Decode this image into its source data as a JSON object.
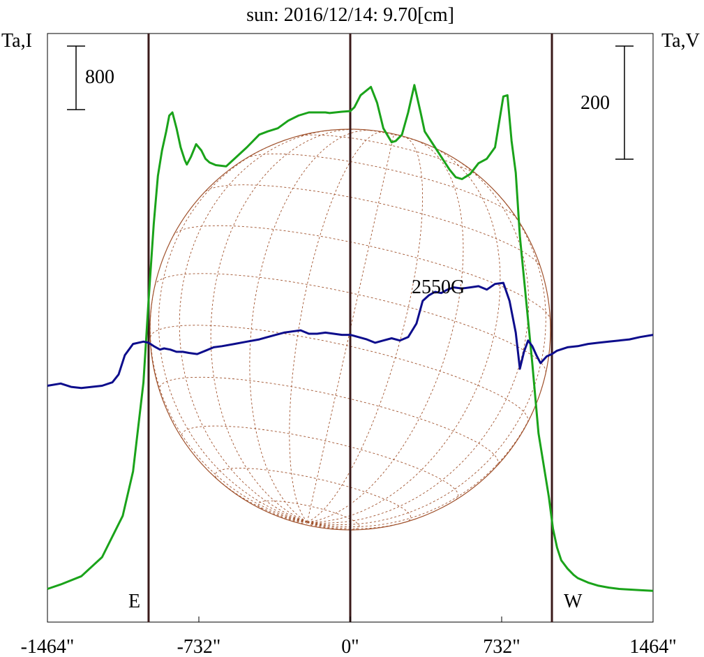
{
  "chart_data": {
    "type": "line",
    "title": "sun: 2016/12/14: 9.70[cm]",
    "title_color": "#1f1f6e",
    "left_axis_label": "Ta,I",
    "right_axis_label": "Ta,V",
    "intensity_scale_bar": "800",
    "polarization_scale_bar": "200",
    "field_strength_label": "2550G",
    "east_label": "E",
    "west_label": "W",
    "x_ticks": [
      {
        "value": -1464,
        "label": "-1464\""
      },
      {
        "value": -732,
        "label": "-732\""
      },
      {
        "value": 0,
        "label": "0\""
      },
      {
        "value": 732,
        "label": "732\""
      },
      {
        "value": 1464,
        "label": "1464\""
      }
    ],
    "xlim": [
      -1464,
      1464
    ],
    "solar_limb_arcsec": 975,
    "colors": {
      "intensity": "#1aa31a",
      "polarization": "#0d0d8c",
      "limb_lines": "#3a1a1a",
      "solar_disk": "#a0522d",
      "axes": "#000000"
    },
    "series": [
      {
        "name": "Ta,I",
        "note": "y in relative units of the 800 scale bar",
        "x": [
          -1464,
          -1400,
          -1300,
          -1200,
          -1100,
          -1050,
          -1000,
          -975,
          -950,
          -930,
          -910,
          -890,
          -875,
          -860,
          -840,
          -820,
          -800,
          -790,
          -770,
          -745,
          -720,
          -700,
          -680,
          -650,
          -600,
          -550,
          -500,
          -470,
          -440,
          -400,
          -350,
          -300,
          -250,
          -200,
          -160,
          -120,
          -100,
          -40,
          0,
          20,
          50,
          100,
          130,
          160,
          200,
          220,
          250,
          280,
          310,
          340,
          360,
          400,
          440,
          480,
          510,
          540,
          580,
          620,
          660,
          700,
          740,
          760,
          780,
          800,
          820,
          850,
          880,
          910,
          960,
          980,
          1000,
          1020,
          1050,
          1080,
          1100,
          1150,
          1200,
          1250,
          1300,
          1400,
          1464
        ],
        "y": [
          0.05,
          0.12,
          0.25,
          0.55,
          1.2,
          1.9,
          3.3,
          4.6,
          5.8,
          6.55,
          6.95,
          7.25,
          7.5,
          7.55,
          7.3,
          7.0,
          6.8,
          6.73,
          6.85,
          7.05,
          6.95,
          6.82,
          6.76,
          6.72,
          6.7,
          6.85,
          7.0,
          7.1,
          7.2,
          7.25,
          7.3,
          7.42,
          7.5,
          7.55,
          7.55,
          7.55,
          7.54,
          7.56,
          7.57,
          7.63,
          7.82,
          7.95,
          7.7,
          7.3,
          7.08,
          7.1,
          7.2,
          7.55,
          7.98,
          7.55,
          7.25,
          7.05,
          6.85,
          6.65,
          6.53,
          6.5,
          6.58,
          6.75,
          6.82,
          7.0,
          7.8,
          7.82,
          7.1,
          6.6,
          5.6,
          4.6,
          3.6,
          2.5,
          1.5,
          1.0,
          0.7,
          0.5,
          0.37,
          0.27,
          0.22,
          0.15,
          0.1,
          0.07,
          0.05,
          0.03,
          0.02
        ]
      },
      {
        "name": "Ta,V",
        "note": "y in relative units of the 200 scale bar",
        "x": [
          -1464,
          -1400,
          -1350,
          -1300,
          -1250,
          -1200,
          -1150,
          -1120,
          -1090,
          -1050,
          -1000,
          -975,
          -950,
          -920,
          -900,
          -870,
          -840,
          -810,
          -780,
          -740,
          -700,
          -660,
          -620,
          -560,
          -500,
          -440,
          -400,
          -360,
          -320,
          -280,
          -240,
          -200,
          -160,
          -120,
          -80,
          -40,
          0,
          40,
          80,
          120,
          160,
          200,
          240,
          280,
          320,
          350,
          380,
          410,
          440,
          470,
          500,
          540,
          580,
          620,
          660,
          700,
          740,
          770,
          800,
          820,
          840,
          860,
          880,
          900,
          920,
          950,
          975,
          1000,
          1050,
          1100,
          1150,
          1200,
          1250,
          1300,
          1350,
          1400,
          1464
        ],
        "y": [
          -0.25,
          -0.23,
          -0.26,
          -0.27,
          -0.26,
          -0.25,
          -0.22,
          -0.15,
          0.02,
          0.12,
          0.14,
          0.13,
          0.1,
          0.07,
          0.08,
          0.07,
          0.05,
          0.05,
          0.04,
          0.03,
          0.06,
          0.09,
          0.1,
          0.12,
          0.14,
          0.16,
          0.18,
          0.2,
          0.22,
          0.23,
          0.24,
          0.21,
          0.21,
          0.22,
          0.21,
          0.2,
          0.2,
          0.18,
          0.16,
          0.13,
          0.15,
          0.17,
          0.15,
          0.18,
          0.3,
          0.5,
          0.55,
          0.58,
          0.57,
          0.6,
          0.62,
          0.61,
          0.62,
          0.63,
          0.6,
          0.65,
          0.66,
          0.5,
          0.22,
          -0.1,
          0.05,
          0.15,
          0.1,
          0.02,
          -0.05,
          0.01,
          0.03,
          0.06,
          0.09,
          0.1,
          0.12,
          0.13,
          0.14,
          0.15,
          0.16,
          0.18,
          0.2
        ]
      }
    ]
  }
}
